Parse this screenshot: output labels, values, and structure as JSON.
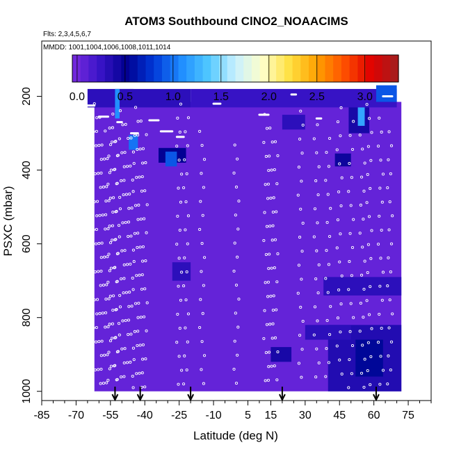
{
  "chart_data": {
    "type": "heatmap",
    "title": "ATOM3 Southbound ClNO2_NOAACIMS",
    "subtitle_flights": "Flts: 2,3,4,5,6,7",
    "subtitle_dates": "MMDD: 1001,1004,1006,1008,1011,1014",
    "xlabel": "Latitude (deg N)",
    "ylabel": "PSXC (mbar)",
    "xlim": [
      -85,
      85
    ],
    "ylim": [
      1025,
      50
    ],
    "x_ticks": [
      -85,
      -70,
      -55,
      -40,
      -25,
      -10,
      5,
      15,
      30,
      45,
      60,
      75
    ],
    "x_tick_labels": [
      "-85",
      "-70",
      "-55",
      "-40",
      "-25",
      "-10",
      "5",
      "15",
      "30",
      "45",
      "60",
      "75"
    ],
    "y_ticks": [
      200,
      400,
      600,
      800,
      1000
    ],
    "y_tick_labels": [
      "200",
      "400",
      "600",
      "800",
      "1000"
    ],
    "colorbar": {
      "range": [
        -0.05,
        3.35
      ],
      "ticks": [
        0.0,
        0.5,
        1.0,
        1.5,
        2.0,
        2.5,
        3.0
      ],
      "tick_labels": [
        "0.0",
        "0.5",
        "1.0",
        "1.5",
        "2.0",
        "2.5",
        "3.0"
      ],
      "colors": [
        "#7b2be0",
        "#3a14c8",
        "#000090",
        "#0038d8",
        "#1e8cff",
        "#50c8ff",
        "#c8f0ff",
        "#ffffc8",
        "#ffe040",
        "#ffa000",
        "#ff5000",
        "#e00000",
        "#a02020"
      ]
    },
    "field": {
      "background_value": 0.05,
      "lat_range": [
        -62,
        72
      ],
      "pressure_top": 215,
      "pressure_bottom": 1000,
      "cells": [
        {
          "lat": [
            -53,
            -45
          ],
          "p": [
            180,
            215
          ],
          "value": 0.7
        },
        {
          "lat": [
            -65,
            -20
          ],
          "p": [
            180,
            230
          ],
          "value": 0.3
        },
        {
          "lat": [
            -20,
            70
          ],
          "p": [
            180,
            230
          ],
          "value": 0.25
        },
        {
          "lat": [
            -53,
            -51
          ],
          "p": [
            180,
            260
          ],
          "value": 1.1
        },
        {
          "lat": [
            -47,
            -43
          ],
          "p": [
            305,
            345
          ],
          "value": 1.0
        },
        {
          "lat": [
            -34,
            -22
          ],
          "p": [
            340,
            380
          ],
          "value": 0.5
        },
        {
          "lat": [
            -31,
            -26
          ],
          "p": [
            350,
            390
          ],
          "value": 0.9
        },
        {
          "lat": [
            49,
            58
          ],
          "p": [
            230,
            300
          ],
          "value": 0.4
        },
        {
          "lat": [
            53,
            56
          ],
          "p": [
            230,
            280
          ],
          "value": 1.2
        },
        {
          "lat": [
            61,
            70
          ],
          "p": [
            170,
            215
          ],
          "value": 0.9
        },
        {
          "lat": [
            20,
            30
          ],
          "p": [
            250,
            290
          ],
          "value": 0.3
        },
        {
          "lat": [
            43,
            50
          ],
          "p": [
            355,
            390
          ],
          "value": 0.45
        },
        {
          "lat": [
            -28,
            -20
          ],
          "p": [
            650,
            700
          ],
          "value": 0.3
        },
        {
          "lat": [
            40,
            72
          ],
          "p": [
            820,
            1000
          ],
          "value": 0.35
        },
        {
          "lat": [
            52,
            64
          ],
          "p": [
            860,
            960
          ],
          "value": 0.55
        },
        {
          "lat": [
            38,
            72
          ],
          "p": [
            690,
            740
          ],
          "value": 0.3
        },
        {
          "lat": [
            30,
            50
          ],
          "p": [
            820,
            860
          ],
          "value": 0.3
        },
        {
          "lat": [
            15,
            24
          ],
          "p": [
            880,
            920
          ],
          "value": 0.4
        }
      ]
    },
    "vertical_profile_lats": [
      -62,
      -60,
      -58,
      -56,
      -55,
      -53,
      -52,
      -50,
      -48,
      -46,
      -44,
      -42,
      -40,
      -25,
      -22,
      -15,
      0,
      13,
      15,
      17,
      28,
      35,
      40,
      45,
      50,
      55,
      58,
      63,
      67
    ],
    "horizontal_legs": [
      {
        "lat": [
          -66,
          -62
        ],
        "p": 225
      },
      {
        "lat": [
          -60,
          -56
        ],
        "p": 255
      },
      {
        "lat": [
          -52,
          -50
        ],
        "p": 270
      },
      {
        "lat": [
          -46,
          -43
        ],
        "p": 300
      },
      {
        "lat": [
          -38,
          -34
        ],
        "p": 265
      },
      {
        "lat": [
          -33,
          -28
        ],
        "p": 295
      },
      {
        "lat": [
          -26,
          -23
        ],
        "p": 310
      },
      {
        "lat": [
          -10,
          -7
        ],
        "p": 220
      },
      {
        "lat": [
          10,
          14
        ],
        "p": 250
      },
      {
        "lat": [
          24,
          26
        ],
        "p": 195
      },
      {
        "lat": [
          35,
          37
        ],
        "p": 260
      },
      {
        "lat": [
          64,
          68
        ],
        "p": 200
      }
    ],
    "arrow_lats": [
      -53,
      -42,
      -20,
      20,
      61
    ]
  }
}
